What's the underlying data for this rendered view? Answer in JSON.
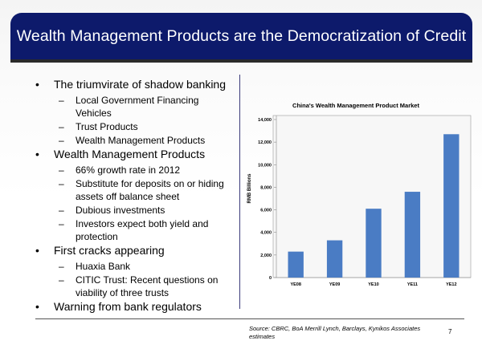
{
  "slide": {
    "title": "Wealth Management Products are the Democratization of Credit",
    "bullets": [
      {
        "text": "The triumvirate of shadow banking",
        "sub": [
          "Local Government Financing Vehicles",
          "Trust Products",
          "Wealth Management Products"
        ]
      },
      {
        "text": "Wealth Management Products",
        "sub": [
          "66% growth rate in 2012",
          "Substitute for deposits on or hiding assets off balance sheet",
          "Dubious investments",
          "Investors expect both yield and protection"
        ]
      },
      {
        "text": "First cracks appearing",
        "sub": [
          "Huaxia Bank",
          "CITIC Trust: Recent questions on viability of three trusts"
        ]
      },
      {
        "text": "Warning from bank regulators",
        "sub": []
      }
    ],
    "source": "Source: CBRC, BoA Merrill Lynch, Barclays, Kynikos Associates estimates",
    "page_number": "7"
  },
  "chart_data": {
    "type": "bar",
    "title": "China's Wealth Management Product Market",
    "ylabel": "RMB Billions",
    "xlabel": "",
    "categories": [
      "YE08",
      "YE09",
      "YE10",
      "YE11",
      "YE12"
    ],
    "values": [
      2300,
      3300,
      6100,
      7600,
      12700
    ],
    "ylim": [
      0,
      14000
    ],
    "yticks": [
      0,
      2000,
      4000,
      6000,
      8000,
      10000,
      12000,
      14000
    ],
    "ytick_labels": [
      "0",
      "2,000",
      "4,000",
      "6,000",
      "8,000",
      "10,000",
      "12,000",
      "14,000"
    ],
    "bar_color": "#4a7cc4",
    "grid": false,
    "legend": "none"
  }
}
